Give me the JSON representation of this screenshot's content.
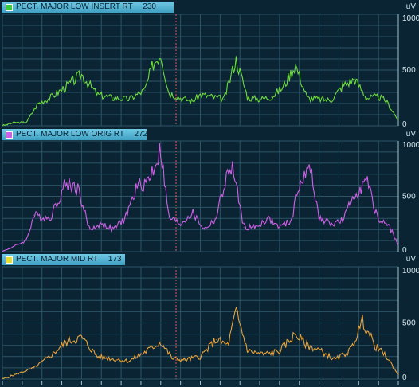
{
  "colors": {
    "background": "#0a2433",
    "grid": "#2a5566",
    "cursor": "#d85a5a",
    "axis_text": "#d6e8ef"
  },
  "chart_data": [
    {
      "type": "line",
      "title": "PECT. MAJOR LOW INSERT RT",
      "current_value": "230",
      "unit": "uV",
      "color": "#6ddc3c",
      "swatch_color": "#35d035",
      "ylim": [
        0,
        1000
      ],
      "yticks": [
        "0",
        "500",
        "1000"
      ],
      "x": [
        0,
        0.03,
        0.06,
        0.09,
        0.12,
        0.16,
        0.2,
        0.24,
        0.28,
        0.32,
        0.36,
        0.38,
        0.4,
        0.42,
        0.45,
        0.48,
        0.5,
        0.53,
        0.56,
        0.59,
        0.62,
        0.65,
        0.68,
        0.71,
        0.74,
        0.77,
        0.8,
        0.83,
        0.86,
        0.89,
        0.92,
        0.95,
        0.97,
        1.0
      ],
      "values": [
        0,
        30,
        30,
        200,
        250,
        350,
        460,
        280,
        250,
        240,
        320,
        550,
        650,
        300,
        250,
        220,
        280,
        260,
        240,
        600,
        250,
        240,
        260,
        350,
        550,
        250,
        240,
        230,
        360,
        420,
        250,
        260,
        220,
        50
      ]
    },
    {
      "type": "line",
      "title": "PECT. MAJOR LOW ORIG RT",
      "current_value": "272",
      "unit": "uV",
      "color": "#d060e8",
      "swatch_color": "#d060e8",
      "ylim": [
        0,
        1000
      ],
      "yticks": [
        "0",
        "500",
        "1000"
      ],
      "x": [
        0,
        0.03,
        0.06,
        0.08,
        0.12,
        0.16,
        0.19,
        0.22,
        0.25,
        0.28,
        0.31,
        0.34,
        0.37,
        0.4,
        0.42,
        0.45,
        0.48,
        0.51,
        0.54,
        0.56,
        0.58,
        0.61,
        0.64,
        0.67,
        0.7,
        0.73,
        0.75,
        0.78,
        0.8,
        0.83,
        0.86,
        0.89,
        0.92,
        0.95,
        0.97,
        1.0
      ],
      "values": [
        0,
        50,
        100,
        330,
        300,
        620,
        580,
        200,
        250,
        200,
        300,
        580,
        650,
        920,
        310,
        250,
        350,
        200,
        300,
        600,
        780,
        220,
        220,
        300,
        220,
        280,
        620,
        750,
        300,
        250,
        280,
        520,
        640,
        270,
        280,
        60
      ]
    },
    {
      "type": "line",
      "title": "PECT. MAJOR MID RT",
      "current_value": "173",
      "unit": "uV",
      "color": "#e8a23a",
      "swatch_color": "#e8e030",
      "ylim": [
        0,
        1000
      ],
      "yticks": [
        "0",
        "500",
        "1000"
      ],
      "x": [
        0,
        0.04,
        0.08,
        0.12,
        0.16,
        0.2,
        0.24,
        0.28,
        0.32,
        0.36,
        0.4,
        0.43,
        0.46,
        0.5,
        0.54,
        0.57,
        0.59,
        0.62,
        0.66,
        0.7,
        0.74,
        0.77,
        0.8,
        0.84,
        0.88,
        0.91,
        0.94,
        0.97,
        1.0
      ],
      "values": [
        0,
        50,
        100,
        200,
        330,
        370,
        200,
        180,
        160,
        240,
        330,
        180,
        170,
        200,
        350,
        300,
        600,
        250,
        220,
        250,
        400,
        300,
        260,
        170,
        260,
        520,
        300,
        200,
        40
      ]
    }
  ]
}
